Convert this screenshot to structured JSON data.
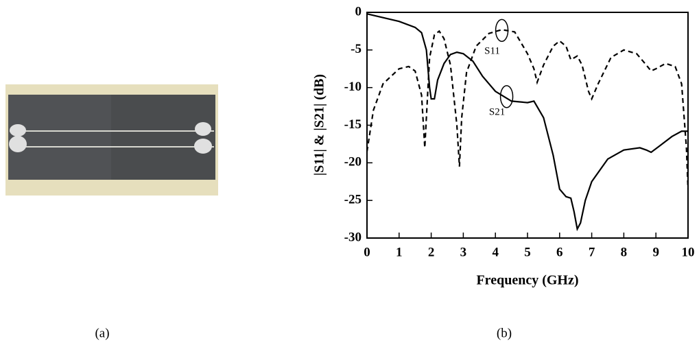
{
  "figure": {
    "captions": [
      "(a)",
      "(b)"
    ]
  },
  "chart_data": {
    "type": "line",
    "xlabel": "Frequency (GHz)",
    "ylabel": "|S11| & |S21| (dB)",
    "xlim": [
      0,
      10
    ],
    "ylim": [
      -30,
      0
    ],
    "xticks": [
      0,
      1,
      2,
      3,
      4,
      5,
      6,
      7,
      8,
      9,
      10
    ],
    "yticks": [
      0,
      -5,
      -10,
      -15,
      -20,
      -25,
      -30
    ],
    "series": [
      {
        "name": "S11",
        "color": "#000000",
        "dash": "dashed",
        "x": [
          0,
          0.2,
          0.5,
          1,
          1.3,
          1.5,
          1.7,
          1.8,
          1.85,
          1.95,
          2.1,
          2.25,
          2.4,
          2.6,
          2.8,
          2.88,
          2.95,
          3.1,
          3.4,
          3.8,
          4.2,
          4.6,
          5.0,
          5.2,
          5.3,
          5.5,
          5.8,
          6.0,
          6.2,
          6.35,
          6.55,
          6.7,
          6.9,
          7.0,
          7.2,
          7.6,
          8.0,
          8.4,
          8.7,
          8.85,
          9.0,
          9.3,
          9.6,
          9.8,
          9.95,
          10
        ],
        "values": [
          -18.5,
          -13,
          -9.5,
          -7.5,
          -7.2,
          -7.8,
          -11,
          -18,
          -14,
          -6,
          -3,
          -2.5,
          -3.5,
          -7,
          -15,
          -20.5,
          -14,
          -8,
          -4.5,
          -2.8,
          -2.3,
          -2.6,
          -5.5,
          -7.5,
          -9.3,
          -7,
          -4.5,
          -3.8,
          -4.5,
          -6.3,
          -5.8,
          -7,
          -10.5,
          -11.5,
          -9.5,
          -6,
          -5,
          -5.5,
          -7,
          -7.8,
          -7.5,
          -6.8,
          -7.2,
          -9.5,
          -18,
          -23.5
        ]
      },
      {
        "name": "S21",
        "color": "#000000",
        "dash": "solid",
        "x": [
          0,
          0.5,
          1,
          1.5,
          1.7,
          1.85,
          1.95,
          2.0,
          2.1,
          2.2,
          2.4,
          2.6,
          2.8,
          3.0,
          3.3,
          3.6,
          4.0,
          4.5,
          5.0,
          5.2,
          5.5,
          5.8,
          6.0,
          6.2,
          6.35,
          6.45,
          6.55,
          6.65,
          6.8,
          7.0,
          7.5,
          8.0,
          8.5,
          8.7,
          8.85,
          9.1,
          9.5,
          9.8,
          10
        ],
        "values": [
          -0.2,
          -0.7,
          -1.2,
          -2,
          -2.7,
          -5,
          -10,
          -11.5,
          -11.5,
          -9,
          -6.8,
          -5.6,
          -5.3,
          -5.5,
          -6.5,
          -8.5,
          -10.5,
          -11.8,
          -12,
          -11.8,
          -14,
          -19,
          -23.5,
          -24.5,
          -24.7,
          -26.5,
          -28.8,
          -28,
          -25,
          -22.5,
          -19.5,
          -18.3,
          -18,
          -18.3,
          -18.6,
          -17.8,
          -16.5,
          -15.8,
          -15.8
        ]
      }
    ],
    "annotations": [
      "S11",
      "S21"
    ]
  }
}
